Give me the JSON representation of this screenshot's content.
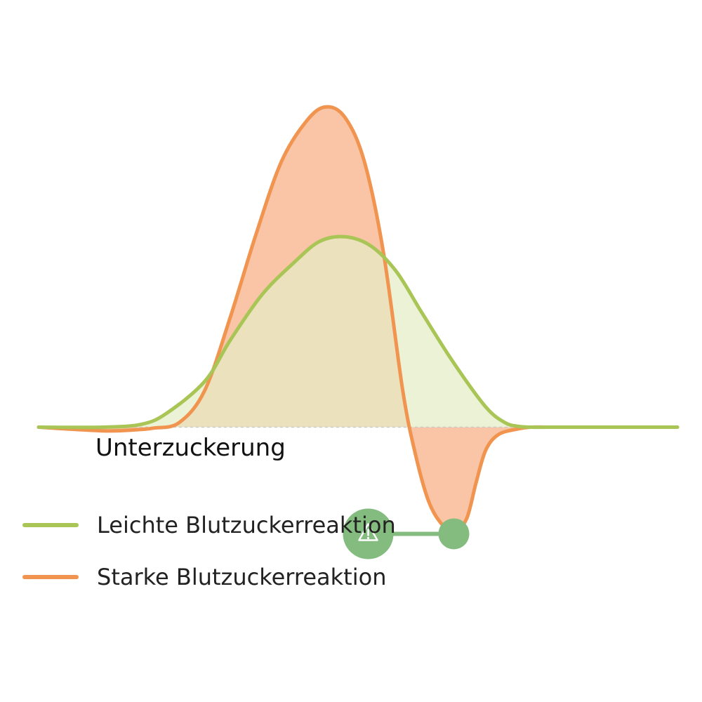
{
  "chart_data": {
    "type": "area",
    "title": "",
    "xlabel": "",
    "ylabel": "",
    "grid": false,
    "axes_visible": false,
    "baseline": 0,
    "legend_position": "bottom-left",
    "x_range": [
      0,
      100
    ],
    "y_range": [
      -1.3,
      3.9
    ],
    "series": [
      {
        "name": "Leichte Blutzuckerreaktion",
        "color": "#a9c556",
        "fill": "#e4edc6",
        "x": [
          0,
          10,
          16,
          20,
          26,
          30,
          35,
          40,
          44,
          48,
          52,
          56,
          60,
          65,
          70,
          73,
          75,
          77,
          80,
          90,
          100
        ],
        "values": [
          0,
          0,
          0.03,
          0.15,
          0.5,
          0.95,
          1.45,
          1.8,
          2.03,
          2.08,
          1.98,
          1.7,
          1.25,
          0.7,
          0.22,
          0.05,
          0.01,
          0,
          0,
          0,
          0
        ]
      },
      {
        "name": "Starke Blutzuckerreaktion",
        "color": "#f0944f",
        "fill": "#f9c5a6",
        "x": [
          0,
          10,
          15,
          18,
          22,
          26,
          30,
          34,
          38,
          42,
          45,
          48,
          51,
          54,
          57,
          59,
          61,
          63,
          65,
          67,
          68.5,
          70,
          72,
          75,
          77,
          80,
          85,
          90,
          100
        ],
        "values": [
          0,
          -0.04,
          -0.03,
          -0.01,
          0.05,
          0.4,
          1.2,
          2.1,
          2.9,
          3.35,
          3.5,
          3.38,
          2.9,
          1.9,
          0.4,
          -0.3,
          -0.8,
          -1.05,
          -1.15,
          -1.0,
          -0.6,
          -0.25,
          -0.08,
          -0.02,
          0,
          0,
          0,
          0,
          0
        ]
      }
    ],
    "annotations": [
      {
        "text": "Unterzuckerung",
        "icon": "warning-triangle-icon",
        "x": 65,
        "y": -1.15
      }
    ]
  }
}
